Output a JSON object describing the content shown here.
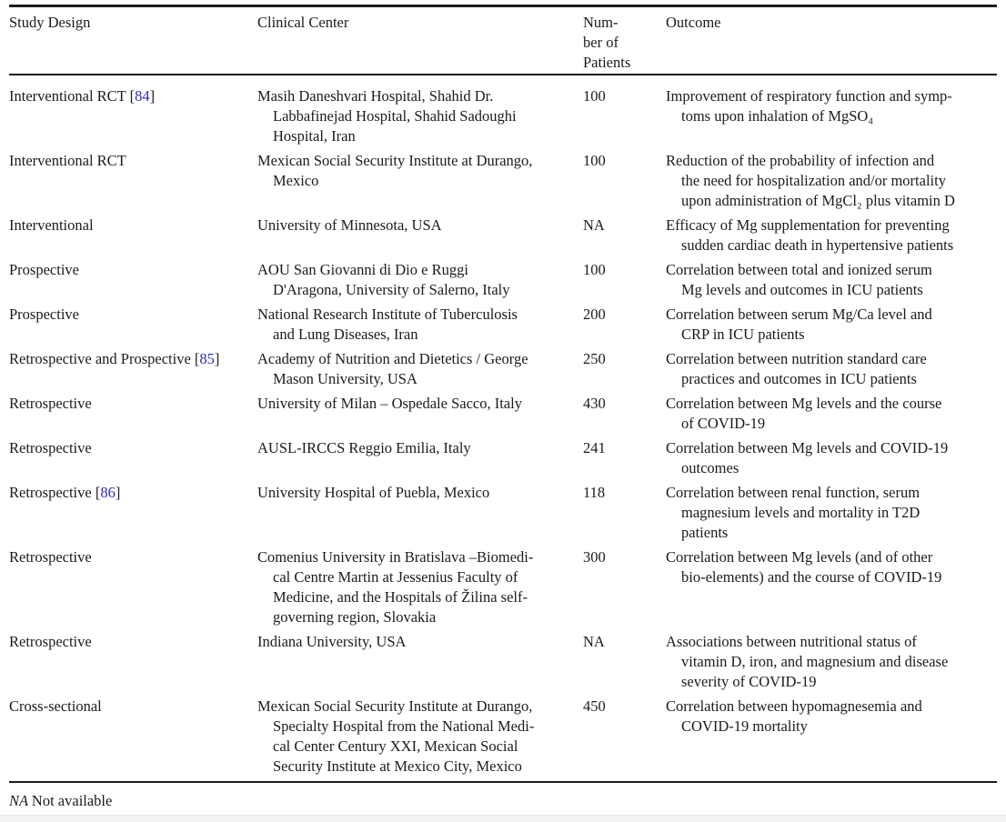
{
  "paper": {
    "text_color": "#1b1b1b",
    "rule_color": "#1c1c1c",
    "citation_color": "#2a2ac0"
  },
  "table": {
    "headers": {
      "design": "Study Design",
      "center": "Clinical Center",
      "patients": [
        "Num-",
        "ber of",
        "Patients"
      ],
      "outcome": "Outcome"
    },
    "rows": [
      {
        "design": "Interventional RCT",
        "ref": "84",
        "center": [
          "Masih Daneshvari Hospital, Shahid Dr.",
          "Labbafinejad Hospital, Shahid Sadoughi",
          "Hospital, Iran"
        ],
        "patients": "100",
        "outcome": [
          "Improvement of respiratory function and symp-",
          "toms upon inhalation of MgSO₄"
        ]
      },
      {
        "design": "Interventional RCT",
        "ref": null,
        "center": [
          "Mexican Social Security Institute at Durango,",
          "Mexico"
        ],
        "patients": "100",
        "outcome": [
          "Reduction of the probability of infection and",
          "the need for hospitalization and/or mortality",
          "upon administration of MgCl₂ plus vitamin D"
        ]
      },
      {
        "design": "Interventional",
        "ref": null,
        "center": [
          "University of Minnesota, USA"
        ],
        "patients": "NA",
        "outcome": [
          "Efficacy of Mg supplementation for preventing",
          "sudden cardiac death in hypertensive patients"
        ]
      },
      {
        "design": "Prospective",
        "ref": null,
        "center": [
          "AOU San Giovanni di Dio e Ruggi",
          "D'Aragona, University of Salerno, Italy"
        ],
        "patients": "100",
        "outcome": [
          "Correlation between total and ionized serum",
          "Mg levels and outcomes in ICU patients"
        ]
      },
      {
        "design": "Prospective",
        "ref": null,
        "center": [
          "National Research Institute of Tuberculosis",
          "and Lung Diseases, Iran"
        ],
        "patients": "200",
        "outcome": [
          "Correlation between serum Mg/Ca level and",
          "CRP in ICU patients"
        ]
      },
      {
        "design": "Retrospective and Prospective",
        "ref": "85",
        "center": [
          "Academy of Nutrition and Dietetics / George",
          "Mason University, USA"
        ],
        "patients": "250",
        "outcome": [
          "Correlation between nutrition standard care",
          "practices and outcomes in ICU patients"
        ]
      },
      {
        "design": "Retrospective",
        "ref": null,
        "center": [
          "University of Milan – Ospedale Sacco, Italy"
        ],
        "patients": "430",
        "outcome": [
          "Correlation between Mg levels and the course",
          "of COVID-19"
        ]
      },
      {
        "design": "Retrospective",
        "ref": null,
        "center": [
          "AUSL-IRCCS Reggio Emilia, Italy"
        ],
        "patients": "241",
        "outcome": [
          "Correlation between Mg levels and COVID-19",
          "outcomes"
        ]
      },
      {
        "design": "Retrospective",
        "ref": "86",
        "center": [
          "University Hospital of Puebla, Mexico"
        ],
        "patients": "118",
        "outcome": [
          "Correlation between renal function, serum",
          "magnesium levels and mortality in T2D",
          "patients"
        ]
      },
      {
        "design": "Retrospective",
        "ref": null,
        "center": [
          "Comenius University in Bratislava –Biomedi-",
          "cal Centre Martin at Jessenius Faculty of",
          "Medicine, and the Hospitals of Žilina self-",
          "governing region, Slovakia"
        ],
        "patients": "300",
        "outcome": [
          "Correlation between Mg levels (and of other",
          "bio-elements) and the course of COVID-19"
        ]
      },
      {
        "design": "Retrospective",
        "ref": null,
        "center": [
          "Indiana University, USA"
        ],
        "patients": "NA",
        "outcome": [
          "Associations between nutritional status of",
          "vitamin D, iron, and magnesium and disease",
          "severity of COVID-19"
        ]
      },
      {
        "design": "Cross-sectional",
        "ref": null,
        "center": [
          "Mexican Social Security Institute at Durango,",
          "Specialty Hospital from the National Medi-",
          "cal Center Century XXI, Mexican Social",
          "Security Institute at Mexico City, Mexico"
        ],
        "patients": "450",
        "outcome": [
          "Correlation between hypomagnesemia and",
          "COVID-19 mortality"
        ]
      }
    ],
    "footnote": {
      "abbr": "NA",
      "text": "Not available"
    }
  }
}
